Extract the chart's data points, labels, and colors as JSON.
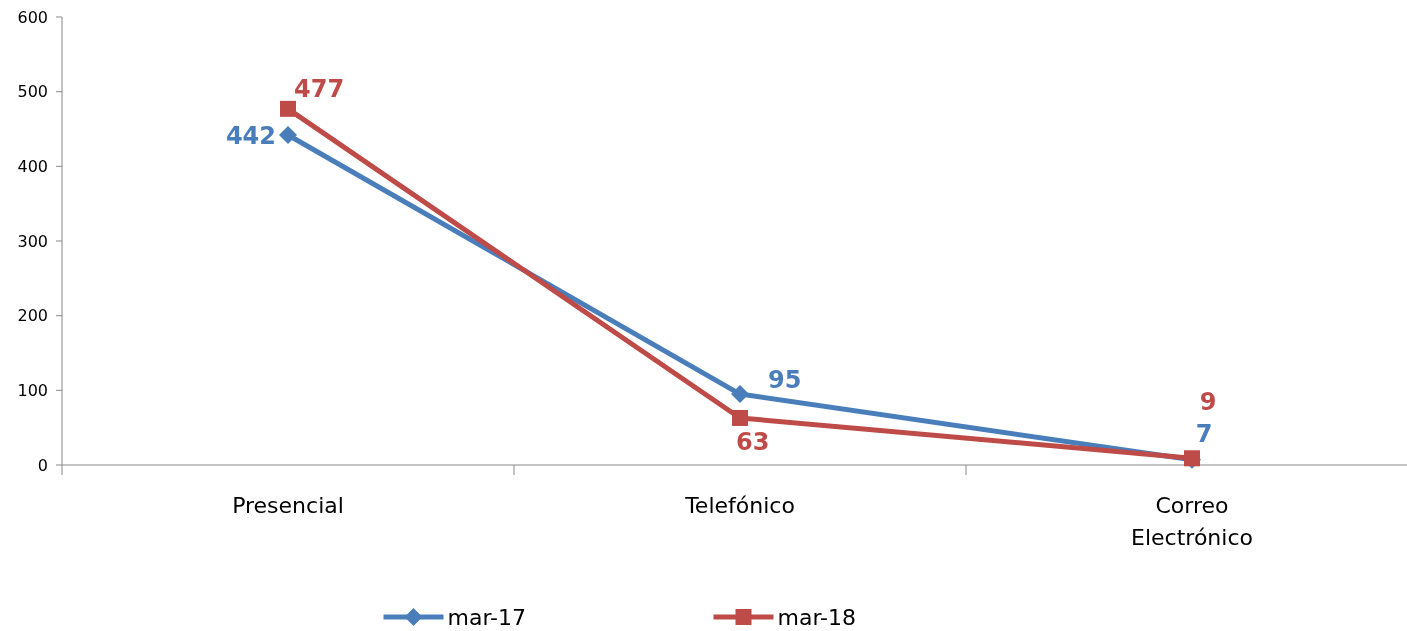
{
  "chart_data": {
    "type": "line",
    "categories": [
      "Presencial",
      "Telefónico",
      "Correo Electrónico"
    ],
    "series": [
      {
        "name": "mar-17",
        "color": "#4a7ebb",
        "values": [
          442,
          95,
          7
        ],
        "marker": "diamond"
      },
      {
        "name": "mar-18",
        "color": "#be4b48",
        "values": [
          477,
          63,
          9
        ],
        "marker": "square"
      }
    ],
    "ylim": [
      0,
      600
    ],
    "yticks": [
      0,
      100,
      200,
      300,
      400,
      500,
      600
    ],
    "grid": false,
    "legend": "bottom",
    "data_labels": true
  }
}
